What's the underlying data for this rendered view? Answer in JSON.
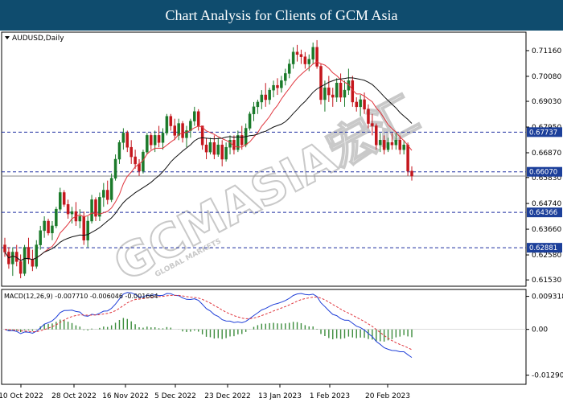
{
  "header": {
    "title": "Chart Analysis for Clients of GCM Asia"
  },
  "watermark": {
    "text": "GCMASIA宏汇",
    "subtext": "GLOBAL MARKETS"
  },
  "chart_data": {
    "type": "candlestick",
    "symbol_label": "AUDUSD,Daily",
    "price_range": [
      0.614,
      0.718
    ],
    "y_ticks": [
      "0.71160",
      "0.70080",
      "0.69030",
      "0.67950",
      "0.66870",
      "0.65830",
      "0.64740",
      "0.63660",
      "0.62580",
      "0.61530"
    ],
    "x_ticks": [
      "10 Oct 2022",
      "28 Oct 2022",
      "16 Nov 2022",
      "5 Dec 2022",
      "23 Dec 2022",
      "13 Jan 2023",
      "1 Feb 2023",
      "20 Feb 2023"
    ],
    "support_resistance": [
      {
        "label": "0.67737",
        "value": 0.67737
      },
      {
        "label": "0.66070",
        "value": 0.6607
      },
      {
        "label": "0.64366",
        "value": 0.64366
      },
      {
        "label": "0.62881",
        "value": 0.62881
      }
    ],
    "current_price": 0.6589,
    "macd": {
      "label": "MACD(12,26,9) -0.007710 -0.006046 -0.001664",
      "y_ticks": [
        "0.009318",
        "0.00",
        "-0.012903"
      ],
      "range": [
        -0.014,
        0.01
      ]
    },
    "candles": [
      {
        "o": 0.63,
        "h": 0.633,
        "l": 0.625,
        "c": 0.627
      },
      {
        "o": 0.627,
        "h": 0.629,
        "l": 0.62,
        "c": 0.622
      },
      {
        "o": 0.622,
        "h": 0.629,
        "l": 0.617,
        "c": 0.627
      },
      {
        "o": 0.627,
        "h": 0.63,
        "l": 0.621,
        "c": 0.623
      },
      {
        "o": 0.623,
        "h": 0.626,
        "l": 0.616,
        "c": 0.618
      },
      {
        "o": 0.618,
        "h": 0.63,
        "l": 0.617,
        "c": 0.629
      },
      {
        "o": 0.629,
        "h": 0.633,
        "l": 0.622,
        "c": 0.624
      },
      {
        "o": 0.624,
        "h": 0.628,
        "l": 0.619,
        "c": 0.621
      },
      {
        "o": 0.621,
        "h": 0.632,
        "l": 0.62,
        "c": 0.63
      },
      {
        "o": 0.63,
        "h": 0.638,
        "l": 0.628,
        "c": 0.636
      },
      {
        "o": 0.636,
        "h": 0.642,
        "l": 0.633,
        "c": 0.64
      },
      {
        "o": 0.64,
        "h": 0.641,
        "l": 0.634,
        "c": 0.635
      },
      {
        "o": 0.635,
        "h": 0.64,
        "l": 0.632,
        "c": 0.638
      },
      {
        "o": 0.638,
        "h": 0.646,
        "l": 0.637,
        "c": 0.645
      },
      {
        "o": 0.645,
        "h": 0.654,
        "l": 0.644,
        "c": 0.652
      },
      {
        "o": 0.652,
        "h": 0.653,
        "l": 0.646,
        "c": 0.647
      },
      {
        "o": 0.647,
        "h": 0.649,
        "l": 0.641,
        "c": 0.643
      },
      {
        "o": 0.643,
        "h": 0.646,
        "l": 0.639,
        "c": 0.644
      },
      {
        "o": 0.644,
        "h": 0.648,
        "l": 0.638,
        "c": 0.64
      },
      {
        "o": 0.64,
        "h": 0.645,
        "l": 0.637,
        "c": 0.642
      },
      {
        "o": 0.642,
        "h": 0.644,
        "l": 0.63,
        "c": 0.632
      },
      {
        "o": 0.632,
        "h": 0.642,
        "l": 0.629,
        "c": 0.64
      },
      {
        "o": 0.64,
        "h": 0.651,
        "l": 0.639,
        "c": 0.649
      },
      {
        "o": 0.649,
        "h": 0.65,
        "l": 0.64,
        "c": 0.642
      },
      {
        "o": 0.642,
        "h": 0.652,
        "l": 0.64,
        "c": 0.65
      },
      {
        "o": 0.65,
        "h": 0.656,
        "l": 0.646,
        "c": 0.653
      },
      {
        "o": 0.653,
        "h": 0.657,
        "l": 0.647,
        "c": 0.649
      },
      {
        "o": 0.649,
        "h": 0.66,
        "l": 0.648,
        "c": 0.658
      },
      {
        "o": 0.658,
        "h": 0.668,
        "l": 0.657,
        "c": 0.666
      },
      {
        "o": 0.666,
        "h": 0.674,
        "l": 0.664,
        "c": 0.673
      },
      {
        "o": 0.673,
        "h": 0.679,
        "l": 0.67,
        "c": 0.677
      },
      {
        "o": 0.677,
        "h": 0.678,
        "l": 0.669,
        "c": 0.671
      },
      {
        "o": 0.671,
        "h": 0.674,
        "l": 0.664,
        "c": 0.667
      },
      {
        "o": 0.667,
        "h": 0.67,
        "l": 0.662,
        "c": 0.664
      },
      {
        "o": 0.664,
        "h": 0.666,
        "l": 0.659,
        "c": 0.661
      },
      {
        "o": 0.661,
        "h": 0.67,
        "l": 0.66,
        "c": 0.669
      },
      {
        "o": 0.669,
        "h": 0.677,
        "l": 0.668,
        "c": 0.676
      },
      {
        "o": 0.676,
        "h": 0.677,
        "l": 0.67,
        "c": 0.672
      },
      {
        "o": 0.672,
        "h": 0.678,
        "l": 0.669,
        "c": 0.676
      },
      {
        "o": 0.676,
        "h": 0.68,
        "l": 0.671,
        "c": 0.673
      },
      {
        "o": 0.673,
        "h": 0.679,
        "l": 0.67,
        "c": 0.677
      },
      {
        "o": 0.677,
        "h": 0.685,
        "l": 0.676,
        "c": 0.684
      },
      {
        "o": 0.684,
        "h": 0.685,
        "l": 0.678,
        "c": 0.68
      },
      {
        "o": 0.68,
        "h": 0.683,
        "l": 0.674,
        "c": 0.676
      },
      {
        "o": 0.676,
        "h": 0.683,
        "l": 0.674,
        "c": 0.681
      },
      {
        "o": 0.681,
        "h": 0.682,
        "l": 0.673,
        "c": 0.675
      },
      {
        "o": 0.675,
        "h": 0.68,
        "l": 0.671,
        "c": 0.678
      },
      {
        "o": 0.678,
        "h": 0.683,
        "l": 0.675,
        "c": 0.682
      },
      {
        "o": 0.682,
        "h": 0.688,
        "l": 0.68,
        "c": 0.686
      },
      {
        "o": 0.686,
        "h": 0.687,
        "l": 0.678,
        "c": 0.68
      },
      {
        "o": 0.68,
        "h": 0.68,
        "l": 0.67,
        "c": 0.672
      },
      {
        "o": 0.672,
        "h": 0.675,
        "l": 0.666,
        "c": 0.669
      },
      {
        "o": 0.669,
        "h": 0.675,
        "l": 0.668,
        "c": 0.673
      },
      {
        "o": 0.673,
        "h": 0.676,
        "l": 0.666,
        "c": 0.668
      },
      {
        "o": 0.668,
        "h": 0.675,
        "l": 0.667,
        "c": 0.672
      },
      {
        "o": 0.672,
        "h": 0.674,
        "l": 0.663,
        "c": 0.666
      },
      {
        "o": 0.666,
        "h": 0.673,
        "l": 0.665,
        "c": 0.671
      },
      {
        "o": 0.671,
        "h": 0.676,
        "l": 0.668,
        "c": 0.674
      },
      {
        "o": 0.674,
        "h": 0.676,
        "l": 0.668,
        "c": 0.67
      },
      {
        "o": 0.67,
        "h": 0.678,
        "l": 0.669,
        "c": 0.676
      },
      {
        "o": 0.676,
        "h": 0.68,
        "l": 0.67,
        "c": 0.672
      },
      {
        "o": 0.672,
        "h": 0.681,
        "l": 0.671,
        "c": 0.679
      },
      {
        "o": 0.679,
        "h": 0.686,
        "l": 0.678,
        "c": 0.685
      },
      {
        "o": 0.685,
        "h": 0.69,
        "l": 0.682,
        "c": 0.688
      },
      {
        "o": 0.688,
        "h": 0.691,
        "l": 0.685,
        "c": 0.69
      },
      {
        "o": 0.69,
        "h": 0.695,
        "l": 0.687,
        "c": 0.693
      },
      {
        "o": 0.693,
        "h": 0.698,
        "l": 0.688,
        "c": 0.691
      },
      {
        "o": 0.691,
        "h": 0.696,
        "l": 0.689,
        "c": 0.695
      },
      {
        "o": 0.695,
        "h": 0.699,
        "l": 0.692,
        "c": 0.697
      },
      {
        "o": 0.697,
        "h": 0.7,
        "l": 0.693,
        "c": 0.696
      },
      {
        "o": 0.696,
        "h": 0.701,
        "l": 0.694,
        "c": 0.699
      },
      {
        "o": 0.699,
        "h": 0.704,
        "l": 0.697,
        "c": 0.702
      },
      {
        "o": 0.702,
        "h": 0.708,
        "l": 0.7,
        "c": 0.706
      },
      {
        "o": 0.706,
        "h": 0.713,
        "l": 0.704,
        "c": 0.711
      },
      {
        "o": 0.711,
        "h": 0.714,
        "l": 0.707,
        "c": 0.71
      },
      {
        "o": 0.71,
        "h": 0.712,
        "l": 0.706,
        "c": 0.709
      },
      {
        "o": 0.709,
        "h": 0.711,
        "l": 0.704,
        "c": 0.706
      },
      {
        "o": 0.706,
        "h": 0.71,
        "l": 0.703,
        "c": 0.708
      },
      {
        "o": 0.708,
        "h": 0.715,
        "l": 0.706,
        "c": 0.713
      },
      {
        "o": 0.713,
        "h": 0.716,
        "l": 0.704,
        "c": 0.705
      },
      {
        "o": 0.705,
        "h": 0.706,
        "l": 0.689,
        "c": 0.691
      },
      {
        "o": 0.691,
        "h": 0.699,
        "l": 0.686,
        "c": 0.696
      },
      {
        "o": 0.696,
        "h": 0.701,
        "l": 0.69,
        "c": 0.693
      },
      {
        "o": 0.693,
        "h": 0.696,
        "l": 0.688,
        "c": 0.692
      },
      {
        "o": 0.692,
        "h": 0.7,
        "l": 0.69,
        "c": 0.698
      },
      {
        "o": 0.698,
        "h": 0.702,
        "l": 0.69,
        "c": 0.692
      },
      {
        "o": 0.692,
        "h": 0.699,
        "l": 0.688,
        "c": 0.695
      },
      {
        "o": 0.695,
        "h": 0.704,
        "l": 0.693,
        "c": 0.699
      },
      {
        "o": 0.699,
        "h": 0.701,
        "l": 0.688,
        "c": 0.69
      },
      {
        "o": 0.69,
        "h": 0.692,
        "l": 0.686,
        "c": 0.688
      },
      {
        "o": 0.688,
        "h": 0.693,
        "l": 0.684,
        "c": 0.691
      },
      {
        "o": 0.691,
        "h": 0.694,
        "l": 0.685,
        "c": 0.687
      },
      {
        "o": 0.687,
        "h": 0.689,
        "l": 0.679,
        "c": 0.681
      },
      {
        "o": 0.681,
        "h": 0.685,
        "l": 0.676,
        "c": 0.68
      },
      {
        "o": 0.68,
        "h": 0.681,
        "l": 0.67,
        "c": 0.672
      },
      {
        "o": 0.672,
        "h": 0.677,
        "l": 0.669,
        "c": 0.674
      },
      {
        "o": 0.674,
        "h": 0.676,
        "l": 0.668,
        "c": 0.67
      },
      {
        "o": 0.67,
        "h": 0.675,
        "l": 0.669,
        "c": 0.673
      },
      {
        "o": 0.673,
        "h": 0.677,
        "l": 0.67,
        "c": 0.672
      },
      {
        "o": 0.672,
        "h": 0.677,
        "l": 0.67,
        "c": 0.674
      },
      {
        "o": 0.674,
        "h": 0.676,
        "l": 0.668,
        "c": 0.67
      },
      {
        "o": 0.67,
        "h": 0.674,
        "l": 0.668,
        "c": 0.672
      },
      {
        "o": 0.672,
        "h": 0.673,
        "l": 0.659,
        "c": 0.661
      },
      {
        "o": 0.661,
        "h": 0.663,
        "l": 0.657,
        "c": 0.6589
      }
    ]
  },
  "colors": {
    "banner": "#0f4c6e",
    "bull": "#1b7a2a",
    "bear": "#c4161c",
    "ma_fast": "#e0343c",
    "ma_slow": "#111111",
    "level_line": "#1f2fa0",
    "macd_line": "#1f3fd8",
    "signal_line": "#e0343c",
    "histogram": "#3c8c3c"
  }
}
